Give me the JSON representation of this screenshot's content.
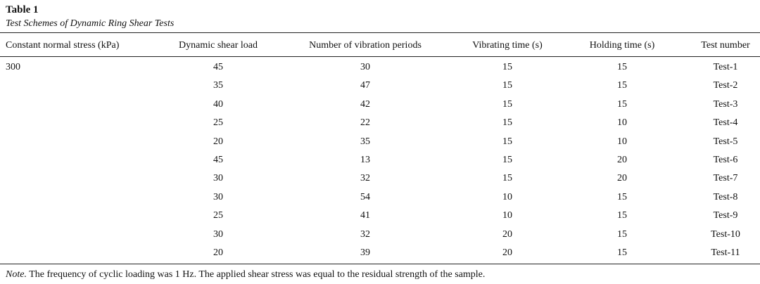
{
  "header": {
    "title": "Table 1",
    "subtitle": "Test Schemes of Dynamic Ring Shear Tests"
  },
  "table": {
    "columns": [
      "Constant normal stress (kPa)",
      "Dynamic shear load",
      "Number of vibration periods",
      "Vibrating time (s)",
      "Holding time (s)",
      "Test number"
    ],
    "rows": [
      [
        300,
        45,
        30,
        15,
        15,
        "Test-1"
      ],
      [
        null,
        35,
        47,
        15,
        15,
        "Test-2"
      ],
      [
        null,
        40,
        42,
        15,
        15,
        "Test-3"
      ],
      [
        null,
        25,
        22,
        15,
        10,
        "Test-4"
      ],
      [
        null,
        20,
        35,
        15,
        10,
        "Test-5"
      ],
      [
        null,
        45,
        13,
        15,
        20,
        "Test-6"
      ],
      [
        null,
        30,
        32,
        15,
        20,
        "Test-7"
      ],
      [
        null,
        30,
        54,
        10,
        15,
        "Test-8"
      ],
      [
        null,
        25,
        41,
        10,
        15,
        "Test-9"
      ],
      [
        null,
        30,
        32,
        20,
        15,
        "Test-10"
      ],
      [
        null,
        20,
        39,
        20,
        15,
        "Test-11"
      ]
    ]
  },
  "note": {
    "label": "Note.",
    "text": "The frequency of cyclic loading was 1 Hz. The applied shear stress was equal to the residual strength of the sample."
  }
}
